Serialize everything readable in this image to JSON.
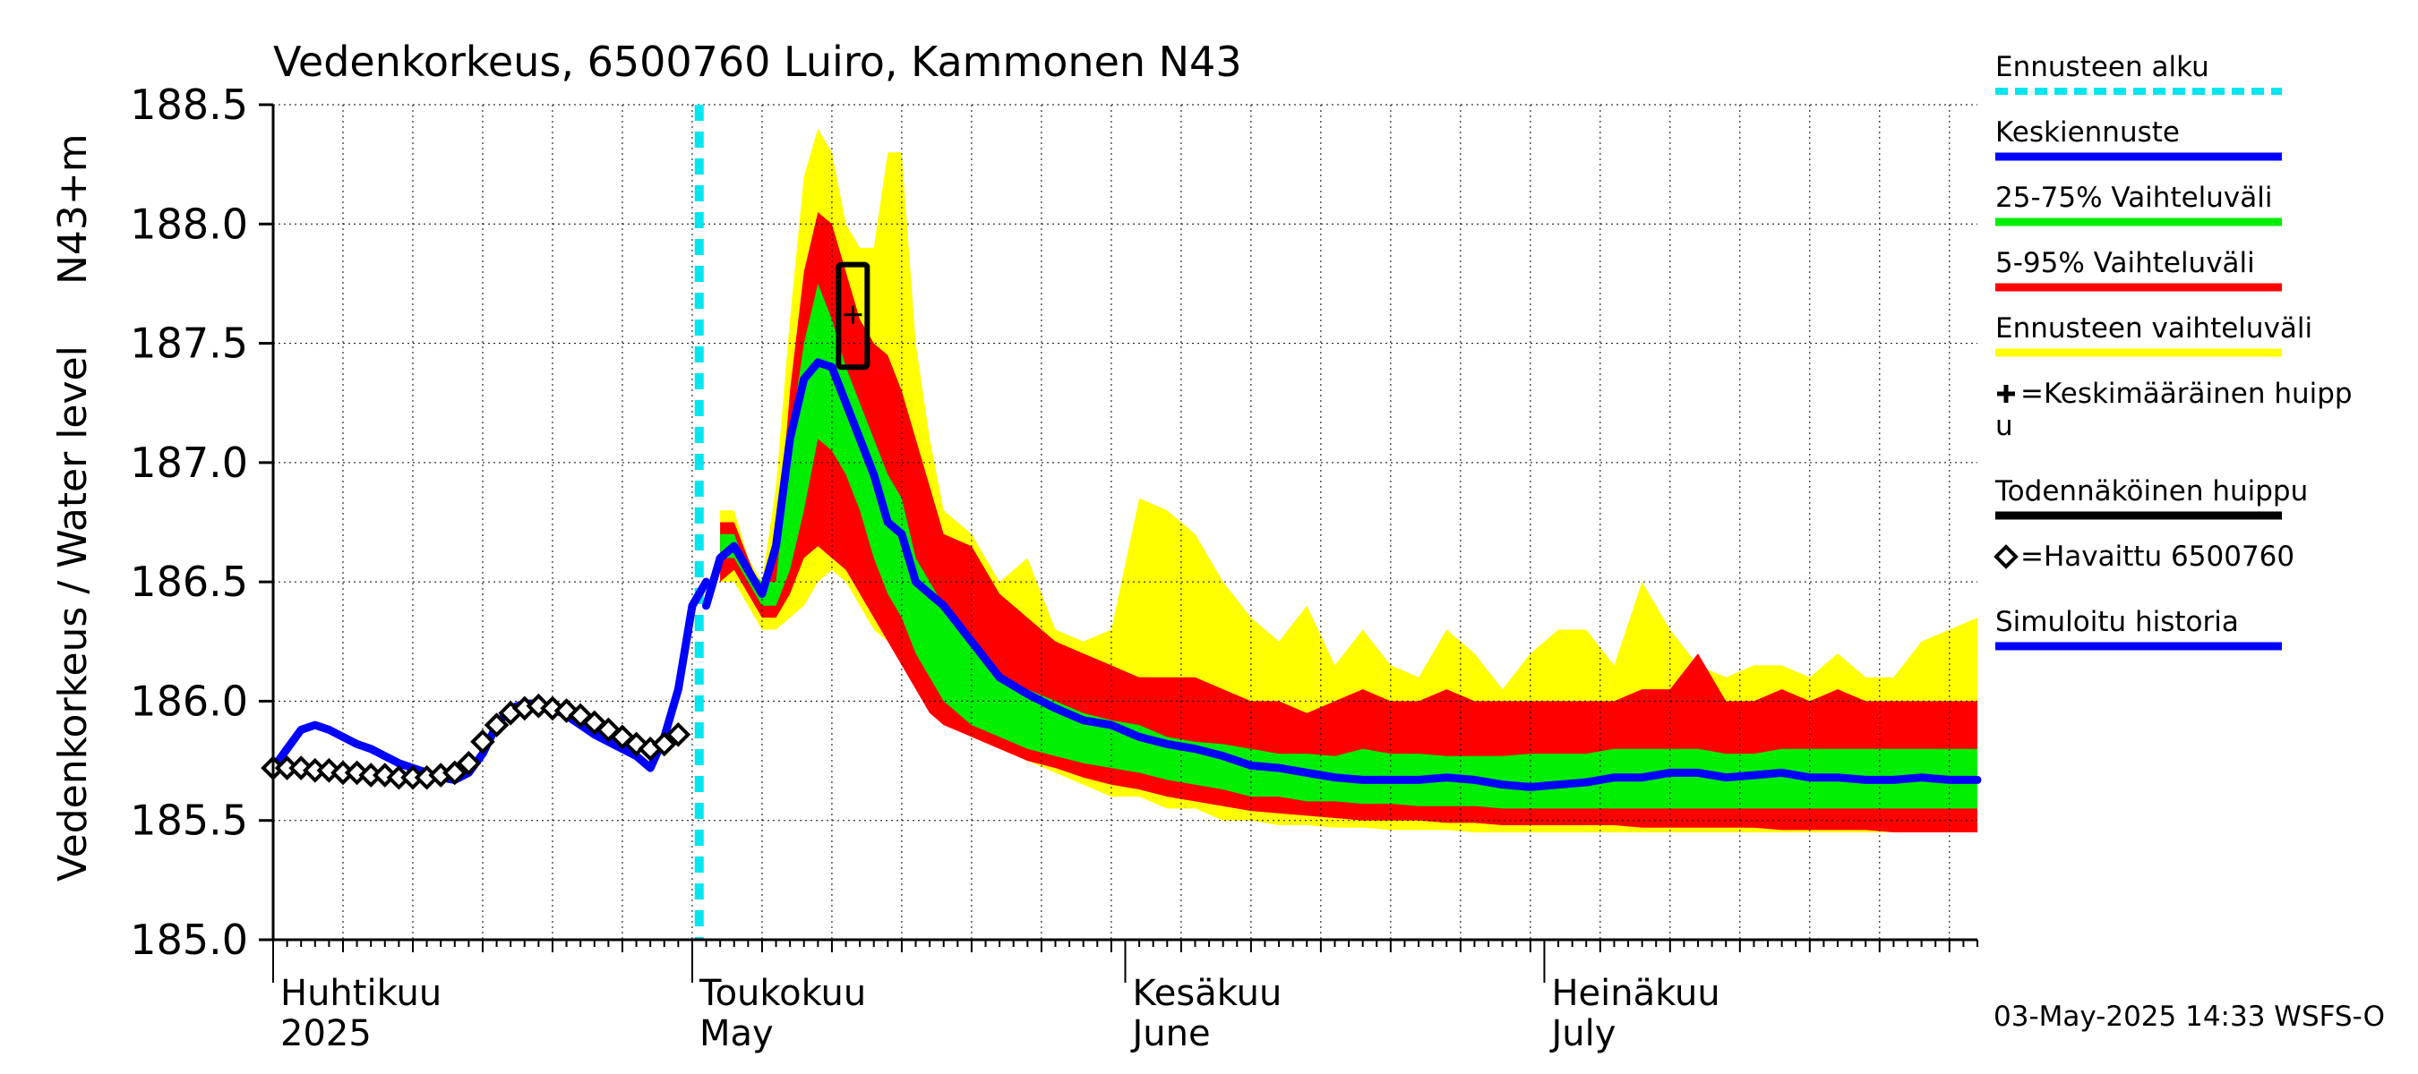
{
  "chart_data": {
    "type": "area",
    "title": "Vedenkorkeus, 6500760 Luiro, Kammonen N43",
    "ylabel_fi": "Vedenkorkeus / Water level",
    "ylabel_unit": "N43+m",
    "ylim": [
      185.0,
      188.5
    ],
    "yticks": [
      "185.0",
      "185.5",
      "186.0",
      "186.5",
      "187.0",
      "187.5",
      "188.0",
      "188.5"
    ],
    "x_range_days": [
      0,
      122
    ],
    "grid": true,
    "months": [
      {
        "fi": "Huhtikuu",
        "en": "2025",
        "day": 0
      },
      {
        "fi": "Toukokuu",
        "en": "May",
        "day": 30
      },
      {
        "fi": "Kesäkuu",
        "en": "June",
        "day": 61
      },
      {
        "fi": "Heinäkuu",
        "en": "July",
        "day": 91
      }
    ],
    "forecast_start_day": 30.5,
    "series": [
      {
        "name": "Ennusteen vaihteluväli",
        "color": "#ffff00",
        "days": [
          32,
          33,
          34,
          35,
          36,
          37,
          38,
          39,
          40,
          41,
          42,
          43,
          44,
          45,
          46,
          47,
          48,
          50,
          52,
          54,
          56,
          58,
          60,
          62,
          64,
          66,
          68,
          70,
          72,
          74,
          76,
          78,
          80,
          82,
          84,
          86,
          88,
          90,
          92,
          94,
          96,
          98,
          100,
          102,
          104,
          106,
          108,
          110,
          112,
          114,
          116,
          118,
          120,
          122
        ],
        "upper": [
          186.8,
          186.8,
          186.6,
          186.5,
          186.9,
          187.6,
          188.2,
          188.4,
          188.3,
          188.0,
          187.9,
          187.9,
          188.3,
          188.3,
          187.5,
          187.1,
          186.8,
          186.7,
          186.5,
          186.6,
          186.3,
          186.25,
          186.3,
          186.85,
          186.8,
          186.7,
          186.5,
          186.35,
          186.25,
          186.4,
          186.15,
          186.3,
          186.15,
          186.1,
          186.3,
          186.2,
          186.05,
          186.2,
          186.3,
          186.3,
          186.15,
          186.5,
          186.3,
          186.15,
          186.1,
          186.15,
          186.15,
          186.1,
          186.2,
          186.1,
          186.1,
          186.25,
          186.3,
          186.35
        ],
        "lower": [
          186.5,
          186.5,
          186.4,
          186.3,
          186.3,
          186.35,
          186.4,
          186.5,
          186.55,
          186.5,
          186.4,
          186.3,
          186.25,
          186.2,
          186.1,
          186.0,
          185.95,
          185.85,
          185.8,
          185.75,
          185.7,
          185.65,
          185.6,
          185.6,
          185.55,
          185.55,
          185.5,
          185.5,
          185.48,
          185.48,
          185.47,
          185.47,
          185.46,
          185.46,
          185.46,
          185.45,
          185.45,
          185.45,
          185.45,
          185.45,
          185.45,
          185.45,
          185.45,
          185.45,
          185.45,
          185.45,
          185.45,
          185.45,
          185.45,
          185.45,
          185.45,
          185.45,
          185.45,
          185.45
        ]
      },
      {
        "name": "5-95% Vaihteluväli",
        "color": "#ff0000",
        "days": [
          32,
          33,
          34,
          35,
          36,
          37,
          38,
          39,
          40,
          41,
          42,
          43,
          44,
          45,
          46,
          47,
          48,
          50,
          52,
          54,
          56,
          58,
          60,
          62,
          64,
          66,
          68,
          70,
          72,
          74,
          76,
          78,
          80,
          82,
          84,
          86,
          88,
          90,
          92,
          94,
          96,
          98,
          100,
          102,
          104,
          106,
          108,
          110,
          112,
          114,
          116,
          118,
          120,
          122
        ],
        "upper": [
          186.75,
          186.75,
          186.6,
          186.45,
          186.6,
          187.3,
          187.8,
          188.05,
          188.0,
          187.8,
          187.6,
          187.5,
          187.45,
          187.3,
          187.1,
          186.9,
          186.7,
          186.65,
          186.45,
          186.35,
          186.25,
          186.2,
          186.15,
          186.1,
          186.1,
          186.1,
          186.05,
          186.0,
          186.0,
          185.95,
          186.0,
          186.05,
          186.0,
          186.0,
          186.05,
          186.0,
          186.0,
          186.0,
          186.0,
          186.0,
          186.0,
          186.05,
          186.05,
          186.2,
          186.0,
          186.0,
          186.05,
          186.0,
          186.05,
          186.0,
          186.0,
          186.0,
          186.0,
          186.0
        ],
        "lower": [
          186.5,
          186.55,
          186.45,
          186.35,
          186.35,
          186.45,
          186.6,
          186.65,
          186.6,
          186.55,
          186.45,
          186.35,
          186.25,
          186.15,
          186.05,
          185.95,
          185.9,
          185.85,
          185.8,
          185.75,
          185.72,
          185.68,
          185.65,
          185.63,
          185.6,
          185.58,
          185.56,
          185.54,
          185.53,
          185.52,
          185.51,
          185.5,
          185.5,
          185.5,
          185.49,
          185.49,
          185.48,
          185.48,
          185.48,
          185.48,
          185.48,
          185.47,
          185.47,
          185.47,
          185.47,
          185.47,
          185.46,
          185.46,
          185.46,
          185.46,
          185.45,
          185.45,
          185.45,
          185.45
        ]
      },
      {
        "name": "25-75% Vaihteluväli",
        "color": "#00ee00",
        "days": [
          32,
          33,
          34,
          35,
          36,
          37,
          38,
          39,
          40,
          41,
          42,
          43,
          44,
          45,
          46,
          47,
          48,
          50,
          52,
          54,
          56,
          58,
          60,
          62,
          64,
          66,
          68,
          70,
          72,
          74,
          76,
          78,
          80,
          82,
          84,
          86,
          88,
          90,
          92,
          94,
          96,
          98,
          100,
          102,
          104,
          106,
          108,
          110,
          112,
          114,
          116,
          118,
          120,
          122
        ],
        "upper": [
          186.7,
          186.7,
          186.55,
          186.5,
          186.5,
          187.1,
          187.5,
          187.75,
          187.6,
          187.4,
          187.25,
          187.1,
          186.95,
          186.85,
          186.6,
          186.5,
          186.4,
          186.25,
          186.1,
          186.05,
          186.0,
          185.95,
          185.92,
          185.9,
          185.85,
          185.83,
          185.82,
          185.8,
          185.78,
          185.78,
          185.77,
          185.8,
          185.78,
          185.78,
          185.77,
          185.77,
          185.77,
          185.78,
          185.78,
          185.78,
          185.8,
          185.8,
          185.8,
          185.8,
          185.78,
          185.78,
          185.8,
          185.8,
          185.8,
          185.8,
          185.8,
          185.8,
          185.8,
          185.8
        ],
        "lower": [
          186.6,
          186.6,
          186.5,
          186.4,
          186.4,
          186.55,
          186.8,
          187.1,
          187.05,
          186.95,
          186.8,
          186.6,
          186.45,
          186.35,
          186.2,
          186.1,
          186.0,
          185.9,
          185.85,
          185.8,
          185.77,
          185.74,
          185.72,
          185.7,
          185.67,
          185.65,
          185.63,
          185.6,
          185.6,
          185.58,
          185.58,
          185.57,
          185.57,
          185.56,
          185.56,
          185.56,
          185.55,
          185.55,
          185.55,
          185.55,
          185.55,
          185.55,
          185.55,
          185.55,
          185.55,
          185.55,
          185.55,
          185.55,
          185.55,
          185.55,
          185.55,
          185.55,
          185.55,
          185.55
        ]
      },
      {
        "name": "Keskiennuste",
        "color": "#0000ff",
        "days": [
          31,
          32,
          33,
          34,
          35,
          36,
          37,
          38,
          39,
          40,
          41,
          42,
          43,
          44,
          45,
          46,
          47,
          48,
          50,
          52,
          54,
          56,
          58,
          60,
          62,
          64,
          66,
          68,
          70,
          72,
          74,
          76,
          78,
          80,
          82,
          84,
          86,
          88,
          90,
          92,
          94,
          96,
          98,
          100,
          102,
          104,
          106,
          108,
          110,
          112,
          114,
          116,
          118,
          120,
          122
        ],
        "values": [
          186.4,
          186.6,
          186.65,
          186.55,
          186.45,
          186.65,
          187.1,
          187.35,
          187.42,
          187.4,
          187.25,
          187.1,
          186.95,
          186.75,
          186.7,
          186.5,
          186.45,
          186.4,
          186.25,
          186.1,
          186.03,
          185.97,
          185.92,
          185.9,
          185.85,
          185.82,
          185.8,
          185.77,
          185.73,
          185.72,
          185.7,
          185.68,
          185.67,
          185.67,
          185.67,
          185.68,
          185.67,
          185.65,
          185.64,
          185.65,
          185.66,
          185.68,
          185.68,
          185.7,
          185.7,
          185.68,
          185.69,
          185.7,
          185.68,
          185.68,
          185.67,
          185.67,
          185.68,
          185.67,
          185.67
        ]
      },
      {
        "name": "Simuloitu historia",
        "color": "#0000ff",
        "days": [
          0,
          1,
          2,
          3,
          4,
          5,
          6,
          7,
          8,
          9,
          10,
          11,
          12,
          13,
          14,
          15,
          16,
          17,
          18,
          19,
          20,
          21,
          22,
          23,
          24,
          25,
          26,
          27,
          28,
          29,
          30,
          31
        ],
        "values": [
          185.72,
          185.8,
          185.88,
          185.9,
          185.88,
          185.85,
          185.82,
          185.8,
          185.77,
          185.74,
          185.72,
          185.7,
          185.68,
          185.67,
          185.7,
          185.78,
          185.9,
          185.97,
          185.99,
          185.99,
          185.97,
          185.94,
          185.9,
          185.86,
          185.83,
          185.8,
          185.77,
          185.72,
          185.85,
          186.05,
          186.4,
          186.5
        ]
      }
    ],
    "observed": {
      "name": "=Havaittu 6500760",
      "days": [
        0,
        1,
        2,
        3,
        4,
        5,
        6,
        7,
        8,
        9,
        10,
        11,
        12,
        13,
        14,
        15,
        16,
        17,
        18,
        19,
        20,
        21,
        22,
        23,
        24,
        25,
        26,
        27,
        28,
        29
      ],
      "values": [
        185.72,
        185.72,
        185.72,
        185.71,
        185.71,
        185.7,
        185.7,
        185.69,
        185.69,
        185.68,
        185.68,
        185.68,
        185.69,
        185.7,
        185.74,
        185.83,
        185.9,
        185.95,
        185.97,
        185.98,
        185.97,
        185.96,
        185.94,
        185.91,
        185.88,
        185.85,
        185.82,
        185.8,
        185.82,
        185.86
      ]
    },
    "peak": {
      "name": "Todennäköinen huippu",
      "day": 41.5,
      "low": 187.4,
      "high": 187.83,
      "mean_label": "=Keskimääräinen huippu",
      "mean_value": 187.62
    },
    "legend": {
      "position": "right",
      "items": [
        {
          "label": "Ennusteen alku",
          "color": "#00e5ee",
          "style": "dashed"
        },
        {
          "label": "Keskiennuste",
          "color": "#0000ff",
          "style": "line"
        },
        {
          "label": "25-75% Vaihteluväli",
          "color": "#00ee00",
          "style": "line"
        },
        {
          "label": "5-95% Vaihteluväli",
          "color": "#ff0000",
          "style": "line"
        },
        {
          "label": "Ennusteen vaihteluväli",
          "color": "#ffff00",
          "style": "line"
        },
        {
          "label": "=Keskimääräinen huipp",
          "label2": "u",
          "color": "#000000",
          "style": "plus"
        },
        {
          "label": "Todennäköinen huippu",
          "color": "#000000",
          "style": "line"
        },
        {
          "label": "=Havaittu 6500760",
          "color": "#000000",
          "style": "diamond"
        },
        {
          "label": "Simuloitu historia",
          "color": "#0000ff",
          "style": "line"
        }
      ]
    },
    "footer": "03-May-2025 14:33 WSFS-O"
  }
}
